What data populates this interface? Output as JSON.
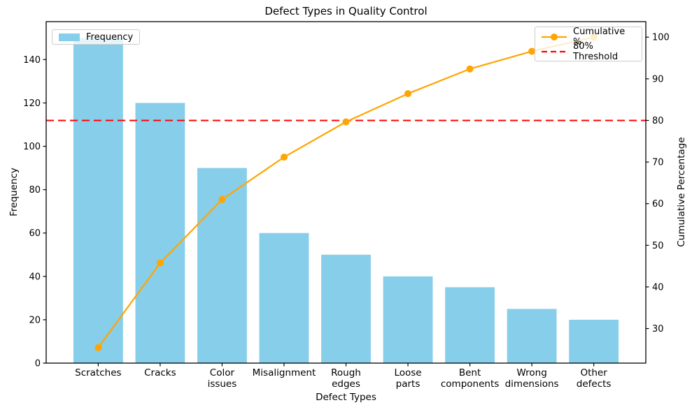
{
  "chart_data": {
    "type": "bar+line (Pareto)",
    "title": "Defect Types in Quality Control",
    "xlabel": "Defect Types",
    "ylabel_left": "Frequency",
    "ylabel_right": "Cumulative Percentage",
    "categories": [
      "Scratches",
      "Cracks",
      "Color\nissues",
      "Misalignment",
      "Rough\nedges",
      "Loose\nparts",
      "Bent\ncomponents",
      "Wrong\ndimensions",
      "Other\ndefects"
    ],
    "series": [
      {
        "name": "Frequency",
        "type": "bar",
        "axis": "left",
        "color": "#87CEEB",
        "values": [
          150,
          120,
          90,
          60,
          50,
          40,
          35,
          25,
          20
        ]
      },
      {
        "name": "Cumulative %",
        "type": "line",
        "axis": "right",
        "color": "#FFA500",
        "marker": "circle",
        "values": [
          25.42,
          45.76,
          61.02,
          71.19,
          79.66,
          86.44,
          92.37,
          96.61,
          100.0
        ]
      }
    ],
    "threshold_line": {
      "label": "80% Threshold",
      "value": 80,
      "axis": "right",
      "color": "#FF0000",
      "style": "dashed"
    },
    "axes": {
      "x": {
        "range": [
          -0.84,
          8.84
        ]
      },
      "left": {
        "ticks": [
          0,
          20,
          40,
          60,
          80,
          100,
          120,
          140
        ],
        "range": [
          0,
          157.5
        ]
      },
      "right": {
        "ticks": [
          30,
          40,
          50,
          60,
          70,
          80,
          90,
          100
        ],
        "range": [
          21.7,
          103.73
        ]
      }
    },
    "legend": {
      "positions": [
        "upper left",
        "upper right"
      ]
    },
    "grid": false,
    "text_color": "#000000",
    "spine_color": "#000000"
  }
}
